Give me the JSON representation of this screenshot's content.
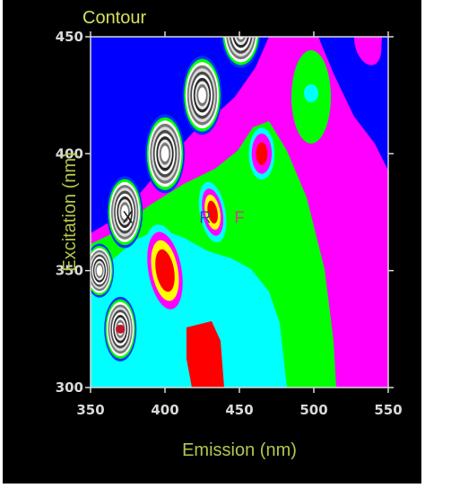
{
  "chart_data": {
    "type": "heatmap",
    "subtype": "contour",
    "title": "Contour",
    "xlabel": "Emission (nm)",
    "ylabel": "Excitation (nm)",
    "xlim": [
      350,
      550
    ],
    "ylim": [
      300,
      450
    ],
    "xticks": [
      350,
      400,
      450,
      500,
      550
    ],
    "yticks": [
      300,
      350,
      400,
      450
    ],
    "grid": false,
    "colors": {
      "background": "#000000",
      "plot": "#0000ff",
      "title": "#d4e05a",
      "axis_label": "#b6c54c",
      "tick_label": "#d9d9d9",
      "magenta": "#ff00ff",
      "green": "#00ff00",
      "cyan": "#00ffff",
      "red": "#ff0000",
      "yellow": "#ffff00"
    },
    "annotations": [
      {
        "text": "X",
        "x": 375,
        "y": 373,
        "color": "#111111"
      },
      {
        "text": "R",
        "x": 427,
        "y": 373,
        "color": "#3046b4"
      },
      {
        "text": "F",
        "x": 450,
        "y": 373,
        "color": "#d0408a"
      }
    ],
    "features": [
      {
        "name": "scatter-peak",
        "x": 360,
        "y": 350
      },
      {
        "name": "scatter-peak",
        "x": 370,
        "y": 325
      },
      {
        "name": "scatter-peak",
        "x": 375,
        "y": 375
      },
      {
        "name": "scatter-peak",
        "x": 400,
        "y": 400
      },
      {
        "name": "scatter-peak",
        "x": 425,
        "y": 425
      },
      {
        "name": "scatter-peak",
        "x": 450,
        "y": 450
      },
      {
        "name": "peak",
        "x": 400,
        "y": 350
      },
      {
        "name": "peak",
        "x": 432,
        "y": 375
      },
      {
        "name": "peak",
        "x": 465,
        "y": 400
      },
      {
        "name": "peak",
        "x": 498,
        "y": 425
      }
    ]
  }
}
